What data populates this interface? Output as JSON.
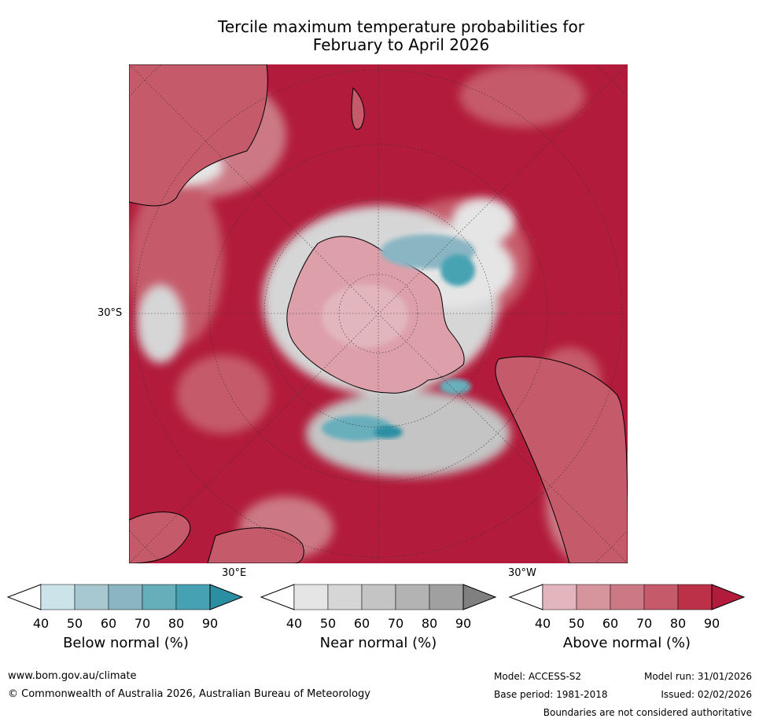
{
  "title": {
    "line1": "Tercile maximum temperature probabilities for",
    "line2": "February to April 2026"
  },
  "map": {
    "projection": "south-polar stereographic",
    "labels": {
      "lat": "30°S",
      "lon_east": "30°E",
      "lon_west": "30°W"
    }
  },
  "colorbars": [
    {
      "label": "Below normal (%)",
      "ticks": [
        "40",
        "50",
        "60",
        "70",
        "80",
        "90"
      ],
      "colors": [
        "#ffffff",
        "#cce3ea",
        "#a7c8d0",
        "#8ab5c3",
        "#67aebb",
        "#46a2b2",
        "#2b8fa3"
      ]
    },
    {
      "label": "Near normal (%)",
      "ticks": [
        "40",
        "50",
        "60",
        "70",
        "80",
        "90"
      ],
      "colors": [
        "#ffffff",
        "#e5e5e5",
        "#d6d6d6",
        "#c4c4c4",
        "#b3b3b3",
        "#a0a0a0",
        "#808080"
      ]
    },
    {
      "label": "Above normal (%)",
      "ticks": [
        "40",
        "50",
        "60",
        "70",
        "80",
        "90"
      ],
      "colors": [
        "#ffffff",
        "#e2b6bc",
        "#d6949d",
        "#cc7985",
        "#c55a6a",
        "#bd3148",
        "#b21b3b"
      ]
    }
  ],
  "footer": {
    "url": "www.bom.gov.au/climate",
    "copyright": "© Commonwealth of Australia 2026, Australian Bureau of Meteorology",
    "model": "Model: ACCESS-S2",
    "model_run": "Model run: 31/01/2026",
    "base_period": "Base period: 1981-2018",
    "issued": "Issued: 02/02/2026",
    "disclaimer": "Boundaries are not considered authoritative"
  }
}
